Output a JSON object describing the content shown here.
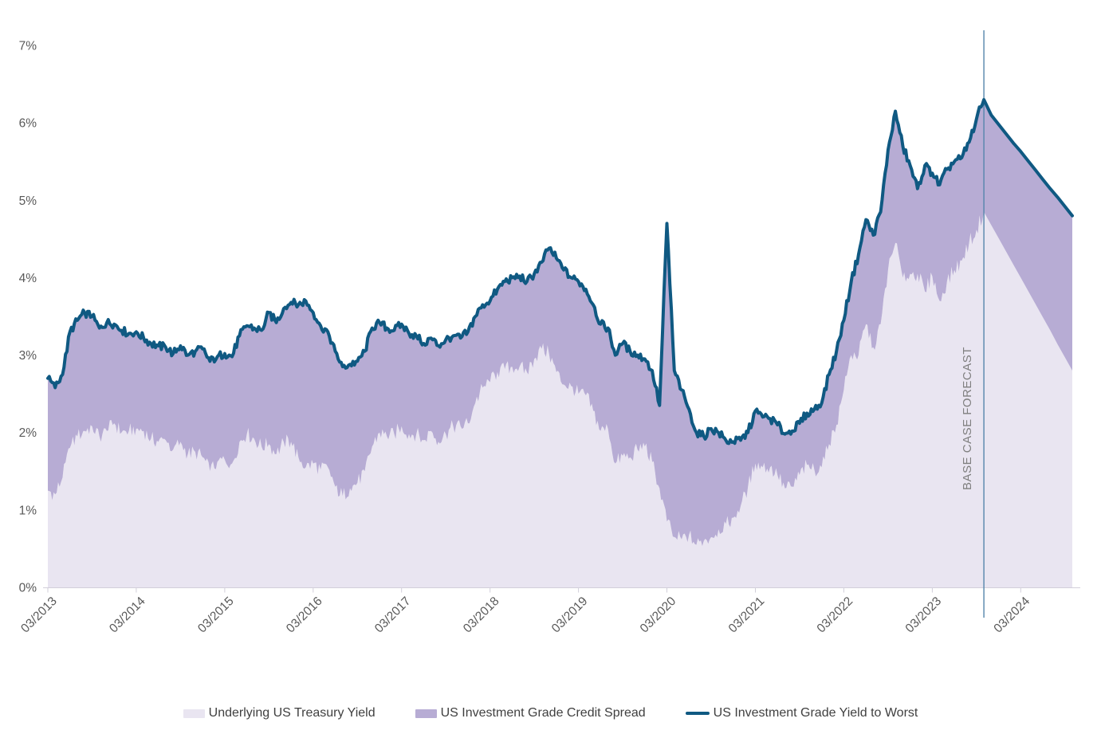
{
  "chart_data": {
    "type": "area",
    "title": "",
    "description": "US Investment Grade yield decomposition: underlying treasury yield area plus credit spread band, with yield-to-worst line and one-year base case forecast",
    "frequency": "monthly",
    "x_start": "03/2013",
    "x_end": "10/2024",
    "x_tick_labels": [
      "03/2013",
      "03/2014",
      "03/2015",
      "03/2016",
      "03/2017",
      "03/2018",
      "03/2019",
      "03/2020",
      "03/2021",
      "03/2022",
      "03/2023",
      "03/2024"
    ],
    "y_tick_labels": [
      "0%",
      "1%",
      "2%",
      "3%",
      "4%",
      "5%",
      "6%",
      "7%"
    ],
    "ylim": [
      0,
      7
    ],
    "grid": false,
    "legend_position": "bottom",
    "forecast": {
      "label": "BASE CASE FORECAST",
      "start_index": 127,
      "start_label": "10/2023",
      "line_color": "#5585ab",
      "label_color": "#7f7f7f"
    },
    "axis": {
      "text_color": "#595959",
      "line_color": "#d2cfda"
    },
    "series": [
      {
        "name": "Underlying US Treasury Yield",
        "render": "area",
        "color": "#e9e5f1",
        "values": [
          1.25,
          1.2,
          1.42,
          1.8,
          1.95,
          2.02,
          2.08,
          1.95,
          2.02,
          2.12,
          2.0,
          2.02,
          2.05,
          2.02,
          1.92,
          1.88,
          1.9,
          1.78,
          1.88,
          1.72,
          1.75,
          1.68,
          1.5,
          1.62,
          1.65,
          1.6,
          1.88,
          1.98,
          1.92,
          1.82,
          1.85,
          1.72,
          1.88,
          1.88,
          1.68,
          1.55,
          1.6,
          1.52,
          1.55,
          1.3,
          1.18,
          1.28,
          1.35,
          1.5,
          1.82,
          2.0,
          1.95,
          1.98,
          2.08,
          1.98,
          1.98,
          1.9,
          2.02,
          1.88,
          1.98,
          2.08,
          2.08,
          2.12,
          2.38,
          2.58,
          2.65,
          2.78,
          2.82,
          2.85,
          2.85,
          2.78,
          2.95,
          3.08,
          3.02,
          2.78,
          2.62,
          2.6,
          2.5,
          2.48,
          2.28,
          2.02,
          2.05,
          1.6,
          1.7,
          1.68,
          1.78,
          1.82,
          1.62,
          1.28,
          0.85,
          0.65,
          0.62,
          0.68,
          0.55,
          0.6,
          0.65,
          0.75,
          0.82,
          0.9,
          1.05,
          1.3,
          1.6,
          1.55,
          1.55,
          1.45,
          1.28,
          1.3,
          1.45,
          1.58,
          1.52,
          1.55,
          1.85,
          2.1,
          2.55,
          3.0,
          3.0,
          3.4,
          3.1,
          3.4,
          4.1,
          4.45,
          4.0,
          4.05,
          4.05,
          3.82,
          4.02,
          3.7,
          3.95,
          4.1,
          4.22,
          4.45,
          4.62,
          4.85,
          4.68,
          4.51,
          4.34,
          4.17,
          4.0,
          3.83,
          3.66,
          3.49,
          3.32,
          3.14,
          2.97,
          2.8
        ]
      },
      {
        "name": "US Investment Grade Credit Spread",
        "render": "band-between-treasury-and-ytw",
        "color": "#b7acd4",
        "note": "stacked on treasury yield; band top equals yield to worst"
      },
      {
        "name": "US Investment Grade Yield to Worst",
        "render": "line",
        "color": "#0f5982",
        "values": [
          2.7,
          2.58,
          2.75,
          3.3,
          3.45,
          3.55,
          3.5,
          3.35,
          3.42,
          3.4,
          3.32,
          3.28,
          3.3,
          3.22,
          3.15,
          3.12,
          3.1,
          3.02,
          3.12,
          3.0,
          3.05,
          3.08,
          2.92,
          2.98,
          3.02,
          2.98,
          3.25,
          3.38,
          3.35,
          3.32,
          3.55,
          3.42,
          3.6,
          3.68,
          3.65,
          3.7,
          3.55,
          3.38,
          3.3,
          3.05,
          2.85,
          2.88,
          2.92,
          3.05,
          3.35,
          3.42,
          3.35,
          3.32,
          3.4,
          3.28,
          3.25,
          3.15,
          3.22,
          3.12,
          3.2,
          3.25,
          3.22,
          3.3,
          3.5,
          3.65,
          3.7,
          3.85,
          3.95,
          4.0,
          4.02,
          3.95,
          4.05,
          4.2,
          4.38,
          4.25,
          4.1,
          4.0,
          3.95,
          3.85,
          3.65,
          3.4,
          3.35,
          3.0,
          3.15,
          3.05,
          3.0,
          2.95,
          2.8,
          2.35,
          4.7,
          2.8,
          2.55,
          2.3,
          2.0,
          1.95,
          2.05,
          2.0,
          1.9,
          1.88,
          1.9,
          2.0,
          2.28,
          2.2,
          2.18,
          2.1,
          1.98,
          2.02,
          2.12,
          2.25,
          2.3,
          2.38,
          2.75,
          3.05,
          3.45,
          3.95,
          4.3,
          4.75,
          4.55,
          4.85,
          5.65,
          6.15,
          5.7,
          5.45,
          5.15,
          5.45,
          5.35,
          5.2,
          5.4,
          5.5,
          5.55,
          5.75,
          6.05,
          6.3,
          6.1,
          5.98,
          5.86,
          5.74,
          5.63,
          5.51,
          5.39,
          5.27,
          5.15,
          5.04,
          4.92,
          4.8
        ]
      }
    ],
    "legend": [
      {
        "label": "Underlying US Treasury Yield",
        "swatch": "area",
        "color": "#e9e5f1"
      },
      {
        "label": "US Investment Grade Credit Spread",
        "swatch": "area",
        "color": "#b7acd4"
      },
      {
        "label": "US Investment Grade Yield to Worst",
        "swatch": "line",
        "color": "#0f5982"
      }
    ]
  }
}
